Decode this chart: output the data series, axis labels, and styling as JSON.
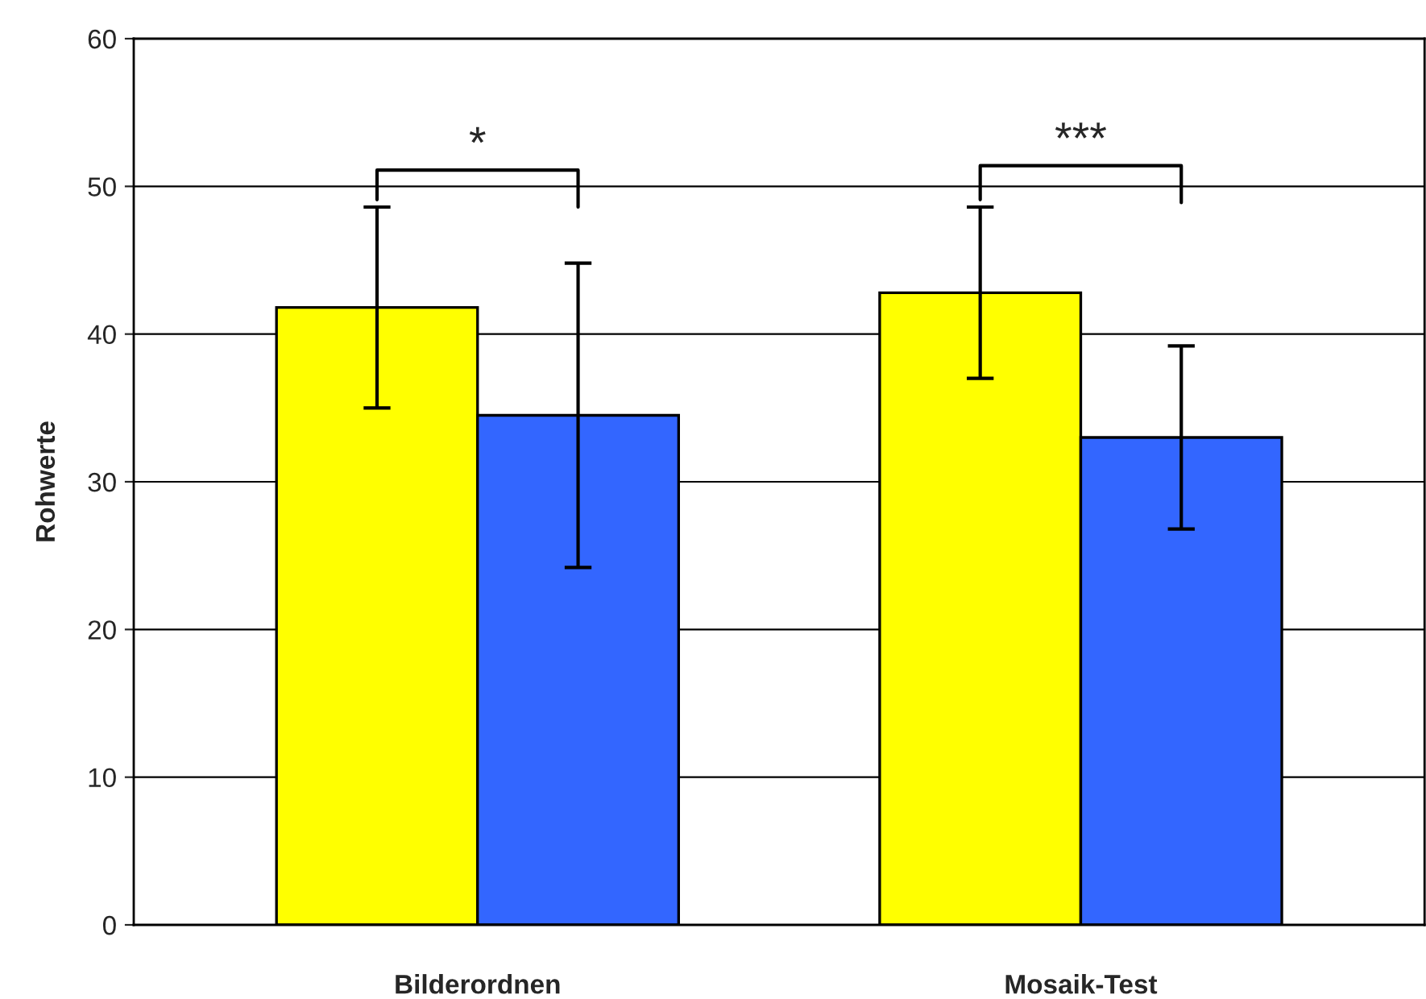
{
  "chart_data": {
    "type": "bar",
    "ylabel": "Rohwerte",
    "categories": [
      "Bilderordnen",
      "Mosaik-Test"
    ],
    "series": [
      {
        "color": "#ffff00",
        "values": [
          41.8,
          42.8
        ],
        "errors": [
          6.8,
          5.8
        ]
      },
      {
        "color": "#3366ff",
        "values": [
          34.5,
          33.0
        ],
        "errors": [
          10.3,
          6.2
        ]
      }
    ],
    "ylim": [
      0,
      60
    ],
    "yticks": [
      0,
      10,
      20,
      30,
      40,
      50,
      60
    ],
    "grid": "y",
    "legend": false,
    "annotations": [
      "*",
      "***"
    ]
  }
}
